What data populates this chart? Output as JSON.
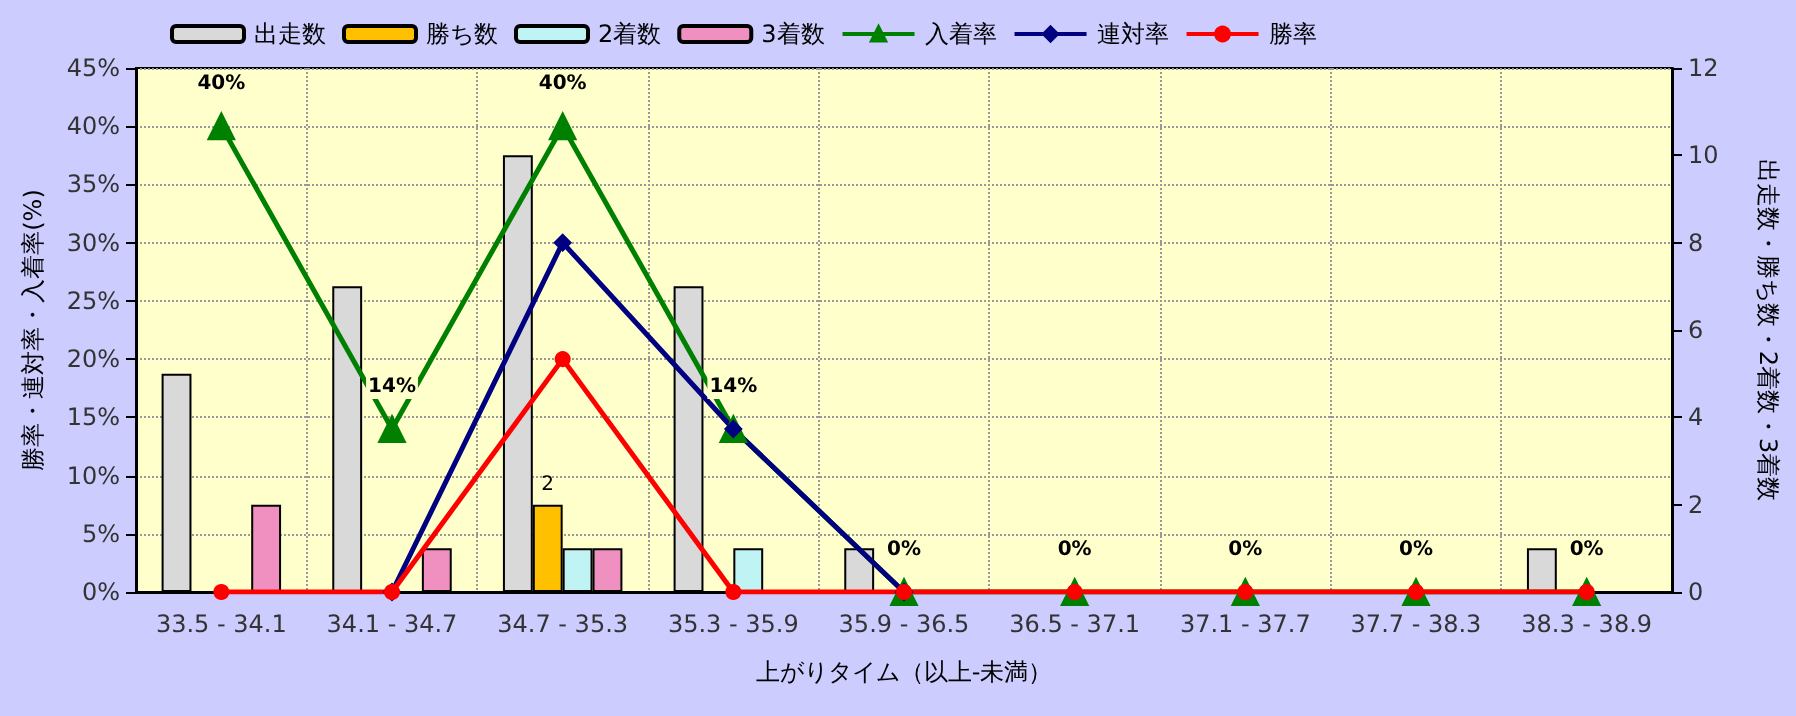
{
  "chart_data": {
    "type": "bar",
    "xlabel": "上がりタイム（以上-未満）",
    "ylabel": "勝率・連対率・入着率(%)",
    "y2label": "出走数・勝ち数・2着数・3着数",
    "categories": [
      "33.5 - 34.1",
      "34.1 - 34.7",
      "34.7 - 35.3",
      "35.3 - 35.9",
      "35.9 - 36.5",
      "36.5 - 37.1",
      "37.1 - 37.7",
      "37.7 - 38.3",
      "38.3 - 38.9"
    ],
    "series": [
      {
        "name": "出走数",
        "axis": "y2",
        "color": "#d9d9d9",
        "values": [
          5,
          7,
          10,
          7,
          1,
          0,
          0,
          0,
          1
        ]
      },
      {
        "name": "勝ち数",
        "axis": "y2",
        "color": "#ffc000",
        "values": [
          0,
          0,
          2,
          0,
          0,
          0,
          0,
          0,
          0
        ],
        "value_labels": [
          null,
          null,
          "2",
          null,
          null,
          null,
          null,
          null,
          null
        ]
      },
      {
        "name": "2着数",
        "axis": "y2",
        "color": "#c0f4f4",
        "values": [
          0,
          0,
          1,
          1,
          0,
          0,
          0,
          0,
          0
        ]
      },
      {
        "name": "3着数",
        "axis": "y2",
        "color": "#f090c0",
        "values": [
          2,
          1,
          1,
          0,
          0,
          0,
          0,
          0,
          0
        ]
      },
      {
        "name": "入着率",
        "type": "line",
        "marker": "triangle",
        "color": "#008000",
        "values": [
          40,
          14,
          40,
          14,
          0,
          0,
          0,
          0,
          0
        ],
        "value_labels": [
          "40%",
          "14%",
          "40%",
          "14%",
          "0%",
          "0%",
          "0%",
          "0%",
          "0%"
        ]
      },
      {
        "name": "連対率",
        "type": "line",
        "marker": "diamond",
        "color": "#000080",
        "values": [
          null,
          0,
          30,
          14,
          0,
          null,
          null,
          null,
          null
        ]
      },
      {
        "name": "勝率",
        "type": "line",
        "marker": "circle",
        "color": "#ff0000",
        "values": [
          0,
          0,
          20,
          0,
          0,
          0,
          0,
          0,
          0
        ]
      }
    ],
    "ylim": [
      0,
      45
    ],
    "yticks": [
      {
        "value": 0,
        "label": "0%"
      },
      {
        "value": 5,
        "label": "5%"
      },
      {
        "value": 10,
        "label": "10%"
      },
      {
        "value": 15,
        "label": "15%"
      },
      {
        "value": 20,
        "label": "20%"
      },
      {
        "value": 25,
        "label": "25%"
      },
      {
        "value": 30,
        "label": "30%"
      },
      {
        "value": 35,
        "label": "35%"
      },
      {
        "value": 40,
        "label": "40%"
      },
      {
        "value": 45,
        "label": "45%"
      }
    ],
    "y2lim": [
      0,
      12
    ],
    "y2ticks": [
      0,
      2,
      4,
      6,
      8,
      10,
      12
    ],
    "grid": true,
    "legend": "top left"
  }
}
